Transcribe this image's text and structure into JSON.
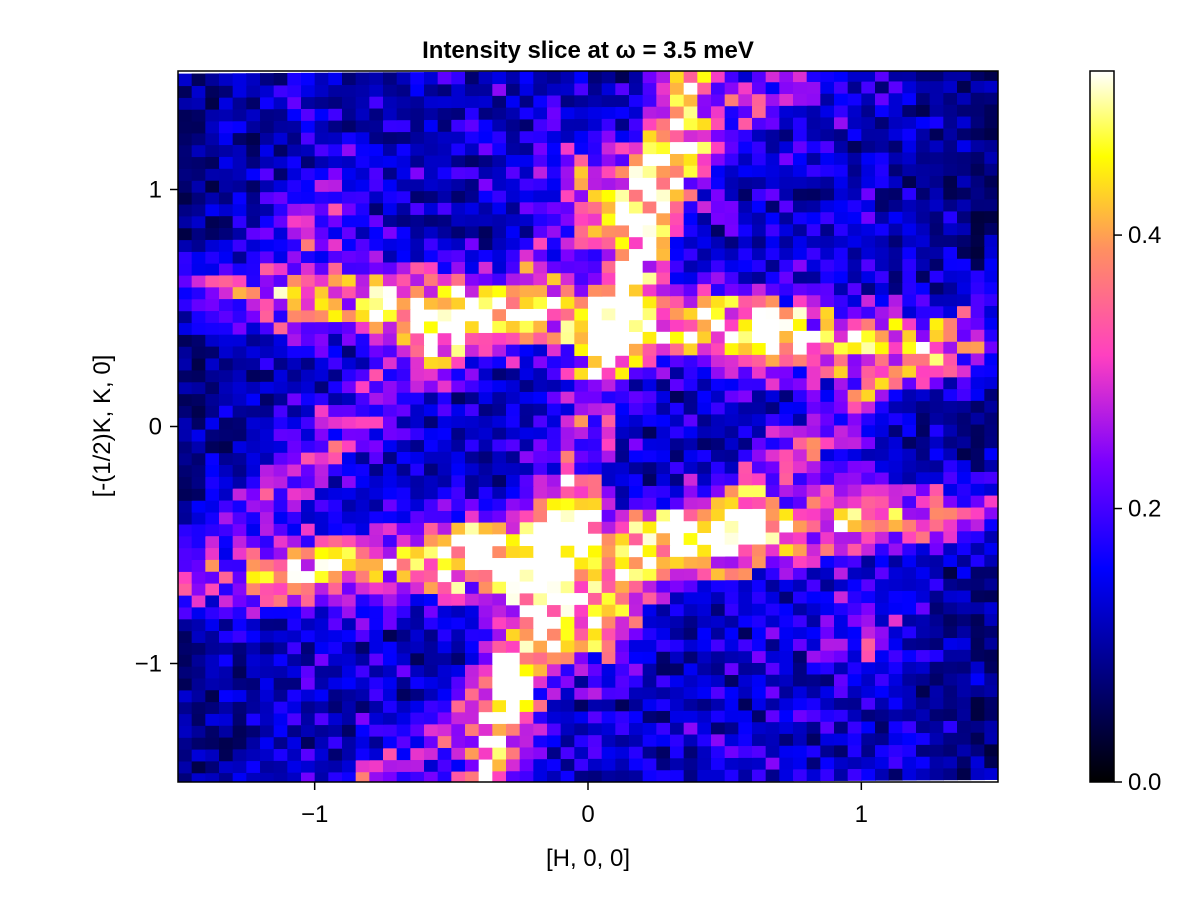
{
  "chart_data": {
    "type": "heatmap",
    "title": "Intensity slice at ω = 3.5 meV",
    "xlabel": "[H, 0, 0]",
    "ylabel": "[-(1/2)K, K, 0]",
    "xlim": [
      -1.5,
      1.5
    ],
    "ylim": [
      -1.5,
      1.5
    ],
    "x_ticks": [
      -1,
      0,
      1
    ],
    "x_tick_labels": [
      "−1",
      "0",
      "1"
    ],
    "y_ticks": [
      -1,
      0,
      1
    ],
    "y_tick_labels": [
      "−1",
      "0",
      "1"
    ],
    "grid": false,
    "colormap": "gnuplot2",
    "colorbar": {
      "range": [
        0.0,
        0.52
      ],
      "ticks": [
        0.0,
        0.2,
        0.4
      ],
      "tick_labels": [
        "0.0",
        "0.2",
        "0.4"
      ]
    },
    "grid_shape": {
      "nx": 60,
      "ny": 60
    },
    "pattern": {
      "description_values": "intensity in [0, 0.52]; bright streaks along lines through (0,0)->(0,1.2), (0,0)->(0,-1.2) and diagonal bands",
      "peaks": [
        {
          "h": 0.0,
          "k": 1.05,
          "amplitude": 0.5
        },
        {
          "h": 0.0,
          "k": -0.85,
          "amplitude": 0.5
        },
        {
          "h": -0.6,
          "k": 0.45,
          "amplitude": 0.45
        },
        {
          "h": 0.6,
          "k": 0.4,
          "amplitude": 0.45
        },
        {
          "h": -0.4,
          "k": -0.55,
          "amplitude": 0.45
        },
        {
          "h": 0.5,
          "k": -0.5,
          "amplitude": 0.45
        },
        {
          "h": -1.0,
          "k": 0.85,
          "amplitude": 0.35
        },
        {
          "h": 1.0,
          "k": -0.85,
          "amplitude": 0.35
        }
      ]
    }
  }
}
